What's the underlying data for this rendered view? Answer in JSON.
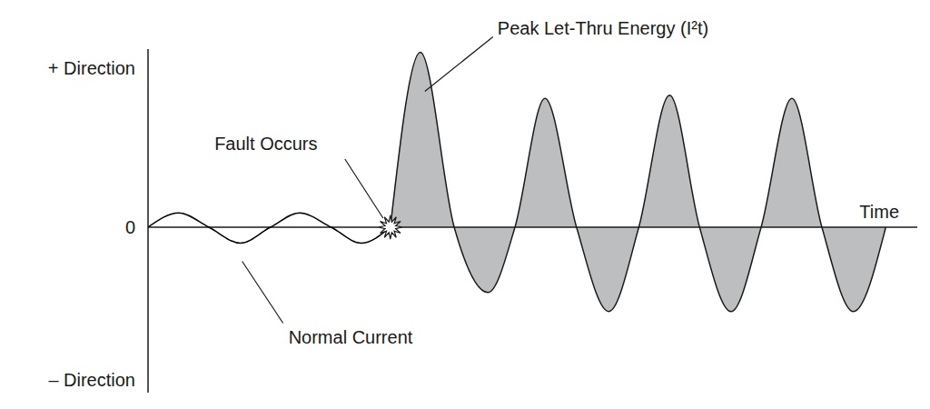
{
  "chart_data": {
    "type": "area",
    "x_label": "Time",
    "annotations": [
      "Fault Occurs"
    ],
    "x": [
      0,
      4.0,
      7.9,
      12.0,
      15.9,
      19.7,
      23.8,
      27.7,
      31.5,
      35.4,
      39.8,
      44.2,
      47.7,
      51.6,
      55.7,
      59.9,
      63.8,
      67.8,
      71.7,
      75.8,
      79.7,
      83.7,
      87.6,
      91.7,
      95.9
    ],
    "xlim": [
      0,
      100
    ],
    "ylim": [
      -10.4,
      11.2
    ],
    "yticks": [
      {
        "value": 10,
        "label": "+ Direction"
      },
      0,
      {
        "value": -9.6,
        "label": "– Direction"
      }
    ],
    "tick_labels": "y",
    "series": [
      {
        "name": "Normal Current",
        "type": "line",
        "color": "#000000",
        "values": [
          0,
          0.9,
          0,
          -1.0,
          0,
          0.9,
          0,
          -1.0,
          0,
          null,
          null,
          null,
          null,
          null,
          null,
          null,
          null,
          null,
          null,
          null,
          null,
          null,
          null,
          null,
          null
        ]
      },
      {
        "name": "Peak Let-Thru Energy (I²t)",
        "type": "area",
        "color": "#bcbec0",
        "values": [
          null,
          null,
          null,
          null,
          null,
          null,
          null,
          null,
          0,
          11.0,
          0,
          -4.1,
          0,
          8.1,
          0,
          -5.3,
          0,
          8.3,
          0,
          -5.3,
          0,
          8.1,
          0,
          -5.3,
          0
        ]
      }
    ]
  }
}
